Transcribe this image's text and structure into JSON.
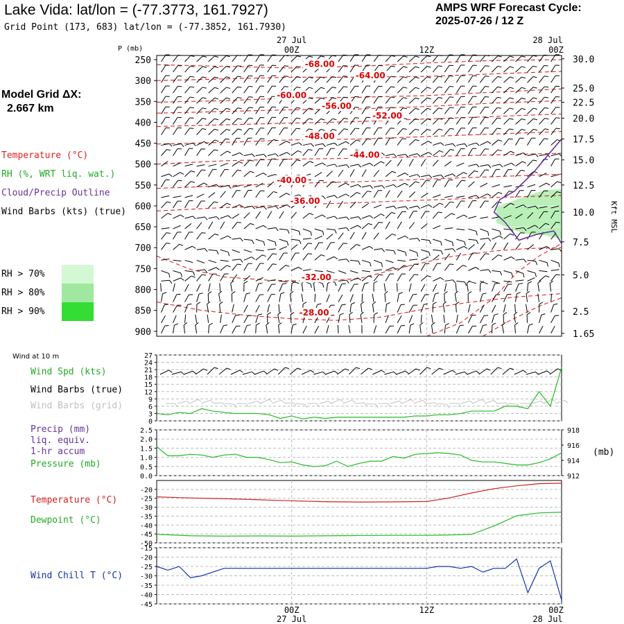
{
  "header": {
    "title": "Lake Vida:  lat/lon = (-77.3773, 161.7927)",
    "gridpoint": "Grid Point (173, 683) lat/lon = (-77.3852, 161.7930)",
    "cycle_label": "AMPS WRF Forecast Cycle:",
    "cycle_value": "2025-07-26 / 12  Z"
  },
  "sidebar": {
    "model_grid_label": "Model Grid ΔX:",
    "model_grid_value": "2.667 km",
    "temperature_label": "Temperature (°C)",
    "rh_label": "RH (%, WRT liq. wat.)",
    "cloud_label": "Cloud/Precip Outline",
    "windbarb_label": "Wind Barbs (kts) (true)",
    "rh_legend": [
      {
        "label": "RH > 70%",
        "color": "#d4f7d4"
      },
      {
        "label": "RH > 80%",
        "color": "#a0e8a0"
      },
      {
        "label": "RH > 90%",
        "color": "#33dd33"
      }
    ]
  },
  "time_axis": {
    "top_labels": [
      {
        "hour": 12,
        "text": "27 Jul",
        "text2": "00Z"
      },
      {
        "hour": 24,
        "text": "",
        "text2": "12Z"
      },
      {
        "hour": 36,
        "text": "28 Jul",
        "text2": "00Z"
      }
    ],
    "bottom_labels": [
      {
        "hour": 12,
        "text": "00Z",
        "text2": "27 Jul"
      },
      {
        "hour": 24,
        "text": "12Z",
        "text2": ""
      },
      {
        "hour": 36,
        "text": "00Z",
        "text2": "28 Jul"
      }
    ]
  },
  "chart_data": [
    {
      "name": "cross-section",
      "type": "contour",
      "x_hours": [
        0,
        36
      ],
      "ylabel": "P (mb)",
      "y_ticks": [
        250,
        300,
        350,
        400,
        450,
        500,
        550,
        600,
        650,
        700,
        750,
        800,
        850,
        900
      ],
      "ylim": [
        240,
        912
      ],
      "right_axis_label": "Kft MSL",
      "right_ticks": [
        {
          "p": 248,
          "label": "30.0"
        },
        {
          "p": 318,
          "label": "25.0"
        },
        {
          "p": 352,
          "label": "22.5"
        },
        {
          "p": 390,
          "label": "20.0"
        },
        {
          "p": 440,
          "label": "17.5"
        },
        {
          "p": 490,
          "label": "15.0"
        },
        {
          "p": 550,
          "label": "12.5"
        },
        {
          "p": 615,
          "label": "10.0"
        },
        {
          "p": 686,
          "label": "7.5"
        },
        {
          "p": 765,
          "label": "5.0"
        },
        {
          "p": 852,
          "label": "2.5"
        },
        {
          "p": 905,
          "label": "1.65"
        }
      ],
      "isotherms": [
        {
          "label": "-68.00",
          "label_at": [
            14.5,
            267
          ],
          "points": [
            [
              0,
              262
            ],
            [
              6,
              266
            ],
            [
              12,
              270
            ],
            [
              18,
              266
            ],
            [
              24,
              258
            ],
            [
              30,
              252
            ],
            [
              36,
              250
            ]
          ]
        },
        {
          "label": "-64.00",
          "label_at": [
            19,
            295
          ],
          "points": [
            [
              0,
              300
            ],
            [
              6,
              296
            ],
            [
              12,
              292
            ],
            [
              18,
              292
            ],
            [
              24,
              290
            ],
            [
              30,
              284
            ],
            [
              36,
              278
            ]
          ]
        },
        {
          "label": "-60.00",
          "label_at": [
            12,
            342
          ],
          "points": [
            [
              0,
              352
            ],
            [
              6,
              348
            ],
            [
              12,
              342
            ],
            [
              18,
              340
            ],
            [
              24,
              336
            ],
            [
              30,
              328
            ],
            [
              36,
              320
            ]
          ]
        },
        {
          "label": "-56.00",
          "label_at": [
            16,
            368
          ],
          "points": [
            [
              0,
              378
            ],
            [
              6,
              374
            ],
            [
              12,
              370
            ],
            [
              18,
              368
            ],
            [
              24,
              362
            ],
            [
              30,
              354
            ],
            [
              36,
              348
            ]
          ]
        },
        {
          "label": "-52.00",
          "label_at": [
            20.5,
            391
          ],
          "points": [
            [
              0,
              410
            ],
            [
              6,
              406
            ],
            [
              12,
              402
            ],
            [
              18,
              398
            ],
            [
              24,
              392
            ],
            [
              30,
              386
            ],
            [
              36,
              380
            ]
          ]
        },
        {
          "label": "-48.00",
          "label_at": [
            14.5,
            440
          ],
          "points": [
            [
              0,
              452
            ],
            [
              6,
              448
            ],
            [
              12,
              442
            ],
            [
              18,
              440
            ],
            [
              24,
              434
            ],
            [
              30,
              428
            ],
            [
              36,
              422
            ]
          ]
        },
        {
          "label": "-44.00",
          "label_at": [
            18.5,
            485
          ],
          "points": [
            [
              0,
              500
            ],
            [
              6,
              492
            ],
            [
              12,
              488
            ],
            [
              18,
              486
            ],
            [
              24,
              482
            ],
            [
              30,
              478
            ],
            [
              36,
              474
            ]
          ]
        },
        {
          "label": "-40.00",
          "label_at": [
            12,
            545
          ],
          "points": [
            [
              0,
              558
            ],
            [
              6,
              552
            ],
            [
              12,
              546
            ],
            [
              18,
              542
            ],
            [
              24,
              536
            ],
            [
              30,
              530
            ],
            [
              36,
              524
            ]
          ]
        },
        {
          "label": "-36.00",
          "label_at": [
            13.2,
            595
          ],
          "points": [
            [
              0,
              612
            ],
            [
              6,
              604
            ],
            [
              12,
              598
            ],
            [
              18,
              592
            ],
            [
              24,
              586
            ],
            [
              30,
              580
            ],
            [
              36,
              575
            ]
          ]
        },
        {
          "label": "-32.00",
          "label_at": [
            14.2,
            778
          ],
          "points": [
            [
              0,
              720
            ],
            [
              3,
              752
            ],
            [
              6,
              770
            ],
            [
              10,
              778
            ],
            [
              14,
              780
            ],
            [
              18,
              774
            ],
            [
              22,
              746
            ],
            [
              26,
              722
            ],
            [
              30,
              708
            ],
            [
              33,
              702
            ],
            [
              36,
              700
            ]
          ]
        },
        {
          "label": "-28.00",
          "label_at": [
            14,
            862
          ],
          "points": [
            [
              0,
              830
            ],
            [
              4,
              850
            ],
            [
              8,
              862
            ],
            [
              12,
              870
            ],
            [
              16,
              874
            ],
            [
              20,
              866
            ],
            [
              24,
              846
            ],
            [
              28,
              830
            ],
            [
              32,
              818
            ],
            [
              36,
              810
            ]
          ]
        },
        {
          "label": "",
          "label_at": null,
          "points": [
            [
              24,
              912
            ],
            [
              27,
              880
            ],
            [
              30,
              820
            ],
            [
              32,
              760
            ],
            [
              34,
              720
            ],
            [
              36,
              690
            ]
          ]
        },
        {
          "label": "",
          "label_at": null,
          "points": [
            [
              29,
              912
            ],
            [
              31,
              880
            ],
            [
              34,
              840
            ],
            [
              36,
              820
            ]
          ]
        }
      ],
      "cloud_outline": [
        [
          36,
          440
        ],
        [
          34.8,
          478
        ],
        [
          33.5,
          520
        ],
        [
          31.8,
          565
        ],
        [
          30.5,
          585
        ],
        [
          30,
          615
        ],
        [
          31,
          640
        ],
        [
          32.2,
          682
        ],
        [
          33.8,
          668
        ],
        [
          35.3,
          660
        ],
        [
          36,
          690
        ]
      ],
      "rh_area": {
        "level": ">70%",
        "points": [
          [
            30.2,
            600
          ],
          [
            31.5,
            590
          ],
          [
            33,
            575
          ],
          [
            34.5,
            562
          ],
          [
            36,
            560
          ],
          [
            36,
            680
          ],
          [
            34.5,
            670
          ],
          [
            33,
            668
          ],
          [
            31.5,
            656
          ],
          [
            30.2,
            640
          ]
        ]
      }
    },
    {
      "name": "wind-10m",
      "type": "line",
      "title": "Wind at 10 m",
      "series_labels": [
        "Wind Spd (kts)",
        "Wind Barbs (true)",
        "Wind Barbs (grid)"
      ],
      "series_colors": [
        "#22bb22",
        "#000000",
        "#c8c8c8"
      ],
      "y_ticks": [
        0,
        3,
        6,
        9,
        12,
        15,
        18,
        21,
        24,
        27
      ],
      "ylim": [
        0,
        27
      ],
      "x": [
        0,
        1,
        2,
        3,
        4,
        5,
        6,
        7,
        8,
        9,
        10,
        11,
        12,
        13,
        14,
        15,
        16,
        17,
        18,
        19,
        20,
        21,
        22,
        23,
        24,
        25,
        26,
        27,
        28,
        29,
        30,
        31,
        32,
        33,
        34,
        35,
        36
      ],
      "values": [
        3,
        2.5,
        3.5,
        3,
        5,
        4,
        3.5,
        3,
        3,
        3,
        2.5,
        1,
        2,
        0.8,
        1.5,
        1,
        1.5,
        1.5,
        1.5,
        1.5,
        1.5,
        1.5,
        1.5,
        2,
        2,
        2.5,
        2.5,
        3,
        4,
        4,
        4,
        6,
        6,
        5,
        12,
        6,
        22
      ]
    },
    {
      "name": "precip-pressure",
      "type": "line",
      "series_labels": [
        "Precip (mm)",
        "liq. equiv.",
        "1-hr accum",
        "Pressure (mb)"
      ],
      "series_colors": [
        "#663399",
        "#663399",
        "#663399",
        "#22bb22"
      ],
      "y_ticks": [
        "0.0",
        "0.5",
        "1.0",
        "1.5",
        "2.0",
        "2.5"
      ],
      "ylim": [
        0,
        2.5
      ],
      "right_label": "(mb)",
      "right_ticks": [
        "912",
        "914",
        "916",
        "918"
      ],
      "right_lim": [
        912,
        918
      ],
      "x": [
        0,
        1,
        2,
        3,
        4,
        5,
        6,
        7,
        8,
        9,
        10,
        11,
        12,
        13,
        14,
        15,
        16,
        17,
        18,
        19,
        20,
        21,
        22,
        23,
        24,
        25,
        26,
        27,
        28,
        29,
        30,
        31,
        32,
        33,
        34,
        35,
        36
      ],
      "pressure": [
        915.8,
        914.6,
        914.6,
        914.8,
        914.7,
        914.4,
        914.7,
        914.8,
        914.4,
        914.4,
        914.1,
        913.7,
        913.8,
        913.4,
        913.2,
        913.3,
        913.9,
        913.2,
        913.6,
        913.9,
        913.9,
        914.5,
        914.3,
        914.8,
        914.9,
        915.0,
        914.9,
        914.7,
        914.0,
        913.8,
        913.8,
        913.6,
        913.4,
        913.4,
        913.7,
        914.2,
        915.0
      ]
    },
    {
      "name": "temp-dewpoint",
      "type": "line",
      "series_labels": [
        "Temperature (°C)",
        "Dewpoint (°C)"
      ],
      "series_colors": [
        "#cc2222",
        "#22bb22"
      ],
      "y_ticks": [
        -20,
        -25,
        -30,
        -35,
        -40,
        -45,
        -50
      ],
      "ylim": [
        -50,
        -15
      ],
      "x": [
        0,
        3,
        6,
        9,
        12,
        15,
        18,
        21,
        24,
        26,
        28,
        30,
        32,
        34,
        36
      ],
      "temperature": [
        -24.2,
        -24.8,
        -25.2,
        -25.8,
        -26.4,
        -26.9,
        -27.1,
        -27.0,
        -26.8,
        -24.8,
        -22.0,
        -19.6,
        -18.0,
        -16.8,
        -16.5
      ],
      "dewpoint": [
        -45.2,
        -46.0,
        -46.2,
        -46.1,
        -46.2,
        -46.0,
        -45.9,
        -45.8,
        -45.8,
        -45.6,
        -45.2,
        -40.5,
        -34.8,
        -33.2,
        -32.8
      ]
    },
    {
      "name": "wind-chill",
      "type": "line",
      "series_labels": [
        "Wind Chill T (°C)"
      ],
      "series_colors": [
        "#1133aa"
      ],
      "y_ticks": [
        -15,
        -20,
        -25,
        -30,
        -35,
        -40,
        -45
      ],
      "ylim": [
        -45,
        -15
      ],
      "x": [
        0,
        1,
        2,
        3,
        4,
        5,
        6,
        7,
        8,
        9,
        10,
        11,
        12,
        13,
        14,
        15,
        16,
        17,
        18,
        19,
        20,
        21,
        22,
        23,
        24,
        25,
        26,
        27,
        28,
        29,
        30,
        31,
        32,
        33,
        34,
        35,
        36
      ],
      "values": [
        -25,
        -27,
        -25,
        -31,
        -30,
        -28,
        -26,
        -26,
        -26,
        -26,
        -26,
        -26,
        -26,
        -26,
        -26,
        -26,
        -26,
        -26,
        -26,
        -26,
        -26,
        -26,
        -26,
        -26,
        -26,
        -25,
        -25,
        -26,
        -25,
        -28,
        -26,
        -26,
        -21,
        -39,
        -26,
        -22,
        -43
      ]
    }
  ]
}
